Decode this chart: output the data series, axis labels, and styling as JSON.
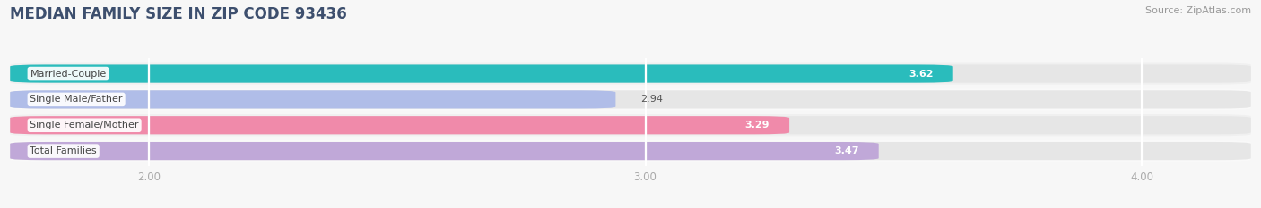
{
  "title": "MEDIAN FAMILY SIZE IN ZIP CODE 93436",
  "source": "Source: ZipAtlas.com",
  "categories": [
    "Married-Couple",
    "Single Male/Father",
    "Single Female/Mother",
    "Total Families"
  ],
  "values": [
    3.62,
    2.94,
    3.29,
    3.47
  ],
  "bar_colors": [
    "#2abcbc",
    "#b0bde8",
    "#f08aaa",
    "#c0a8d8"
  ],
  "value_text_colors": [
    "#ffffff",
    "#666666",
    "#ffffff",
    "#ffffff"
  ],
  "xlim_left": 1.72,
  "xlim_right": 4.22,
  "xticks": [
    2.0,
    3.0,
    4.0
  ],
  "xtick_labels": [
    "2.00",
    "3.00",
    "4.00"
  ],
  "bar_height": 0.7,
  "bg_color": "#f7f7f7",
  "track_color": "#e6e6e6",
  "title_color": "#3d4f6e",
  "title_fontsize": 12,
  "label_fontsize": 8,
  "value_fontsize": 8,
  "source_fontsize": 8,
  "grid_color": "#ffffff",
  "tick_color": "#aaaaaa",
  "row_bg_colors": [
    "#f0f0f0",
    "#f9f9f9",
    "#f0f0f0",
    "#f9f9f9"
  ]
}
